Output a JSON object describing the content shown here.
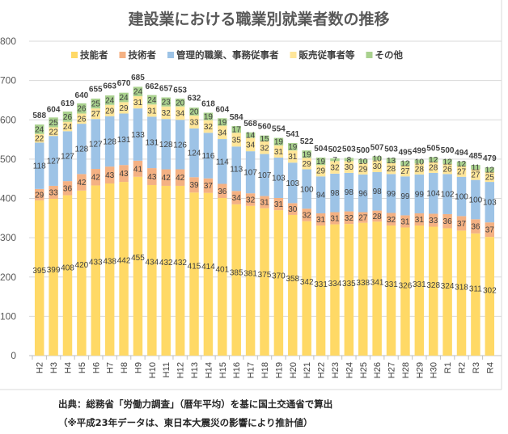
{
  "chart_data": {
    "type": "bar",
    "stacked": true,
    "title": "建設業における職業別就業者数の推移",
    "xlabel": "",
    "ylabel": "",
    "ylim": [
      0,
      800
    ],
    "yticks": [
      0,
      100,
      200,
      300,
      400,
      500,
      600,
      700,
      800
    ],
    "grid": true,
    "legend_position": "top",
    "categories": [
      "H2",
      "H3",
      "H4",
      "H5",
      "H6",
      "H7",
      "H8",
      "H9",
      "H10",
      "H11",
      "H12",
      "H13",
      "H14",
      "H15",
      "H16",
      "H17",
      "H18",
      "H19",
      "H20",
      "H21",
      "H22",
      "H23",
      "H24",
      "H25",
      "H26",
      "H27",
      "H28",
      "H29",
      "H30",
      "R1",
      "R2",
      "R3",
      "R4"
    ],
    "series": [
      {
        "name": "技能者",
        "color": "#FFD966",
        "values": [
          395,
          399,
          408,
          420,
          433,
          438,
          442,
          455,
          434,
          432,
          432,
          415,
          414,
          401,
          385,
          381,
          375,
          370,
          358,
          342,
          331,
          334,
          335,
          338,
          341,
          331,
          326,
          331,
          328,
          324,
          318,
          311,
          302
        ]
      },
      {
        "name": "技術者",
        "color": "#F4B183",
        "values": [
          29,
          33,
          36,
          42,
          42,
          43,
          43,
          41,
          43,
          42,
          42,
          39,
          37,
          36,
          34,
          32,
          31,
          31,
          30,
          32,
          31,
          31,
          32,
          27,
          28,
          32,
          31,
          31,
          33,
          36,
          37,
          36,
          37
        ]
      },
      {
        "name": "管理的職業、事務従事者",
        "color": "#9DC3E6",
        "values": [
          118,
          127,
          127,
          128,
          127,
          128,
          131,
          133,
          131,
          128,
          126,
          124,
          116,
          114,
          113,
          107,
          107,
          103,
          103,
          100,
          94,
          98,
          98,
          96,
          98,
          99,
          99,
          99,
          104,
          102,
          100,
          100,
          103
        ]
      },
      {
        "name": "販売従事者等",
        "color": "#FFE699",
        "values": [
          22,
          22,
          24,
          26,
          27,
          29,
          29,
          31,
          31,
          32,
          34,
          33,
          32,
          34,
          35,
          34,
          32,
          31,
          31,
          29,
          29,
          32,
          30,
          29,
          30,
          28,
          27,
          28,
          28,
          26,
          27,
          27,
          25
        ]
      },
      {
        "name": "その他",
        "color": "#A9D18E",
        "values": [
          24,
          25,
          26,
          26,
          25,
          24,
          24,
          24,
          24,
          23,
          20,
          20,
          19,
          19,
          17,
          14,
          15,
          19,
          19,
          19,
          19,
          7,
          8,
          10,
          10,
          13,
          12,
          10,
          12,
          12,
          12,
          11,
          12
        ]
      }
    ],
    "totals": [
      588,
      604,
      619,
      640,
      655,
      663,
      670,
      685,
      662,
      657,
      653,
      632,
      618,
      604,
      584,
      568,
      560,
      554,
      541,
      522,
      504,
      502,
      503,
      500,
      507,
      503,
      495,
      499,
      505,
      500,
      494,
      485,
      479
    ]
  },
  "notes": {
    "source": "出典：総務省「労働力調査」（暦年平均）を基に国土交通省で算出",
    "remark": "（※平成23年データは、東日本大震災の影響により推計値）"
  }
}
